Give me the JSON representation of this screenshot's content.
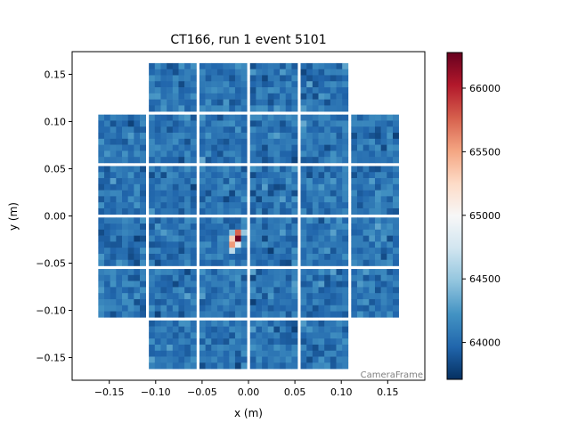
{
  "chart_data": {
    "type": "heatmap",
    "title": "CT166, run 1 event 5101",
    "xlabel": "x  (m)",
    "ylabel": "y  (m)",
    "frame_label": "CameraFrame",
    "xlim": [
      -0.19,
      0.19
    ],
    "ylim": [
      -0.174,
      0.174
    ],
    "xticks": [
      -0.15,
      -0.1,
      -0.05,
      0.0,
      0.05,
      0.1,
      0.15
    ],
    "xtick_labels": [
      "−0.15",
      "−0.10",
      "−0.05",
      "0.00",
      "0.05",
      "0.10",
      "0.15"
    ],
    "yticks": [
      -0.15,
      -0.1,
      -0.05,
      0.0,
      0.05,
      0.1,
      0.15
    ],
    "ytick_labels": [
      "−0.15",
      "−0.10",
      "−0.05",
      "0.00",
      "0.05",
      "0.10",
      "0.15"
    ],
    "grid": false,
    "colormap": "RdBu_r",
    "colorbar": {
      "range": [
        63710,
        66280
      ],
      "ticks": [
        64000,
        64500,
        65000,
        65500,
        66000
      ],
      "tick_labels": [
        "64000",
        "64500",
        "65000",
        "65500",
        "66000"
      ]
    },
    "camera": {
      "modules_grid": "6x6 without corners",
      "pixels_per_module": "8x8",
      "background_range": [
        63750,
        64350
      ]
    },
    "hotspot_pixels": [
      {
        "module_col": 2,
        "module_row": 3,
        "px_col": 5,
        "px_row": 2,
        "value": 64450
      },
      {
        "module_col": 2,
        "module_row": 3,
        "px_col": 6,
        "px_row": 2,
        "value": 65750
      },
      {
        "module_col": 2,
        "module_row": 3,
        "px_col": 7,
        "px_row": 2,
        "value": 64500
      },
      {
        "module_col": 2,
        "module_row": 3,
        "px_col": 5,
        "px_row": 3,
        "value": 65300
      },
      {
        "module_col": 2,
        "module_row": 3,
        "px_col": 6,
        "px_row": 3,
        "value": 66250
      },
      {
        "module_col": 2,
        "module_row": 3,
        "px_col": 5,
        "px_row": 4,
        "value": 65550
      },
      {
        "module_col": 2,
        "module_row": 3,
        "px_col": 6,
        "px_row": 4,
        "value": 64850
      },
      {
        "module_col": 2,
        "module_row": 3,
        "px_col": 5,
        "px_row": 5,
        "value": 64650
      }
    ]
  }
}
